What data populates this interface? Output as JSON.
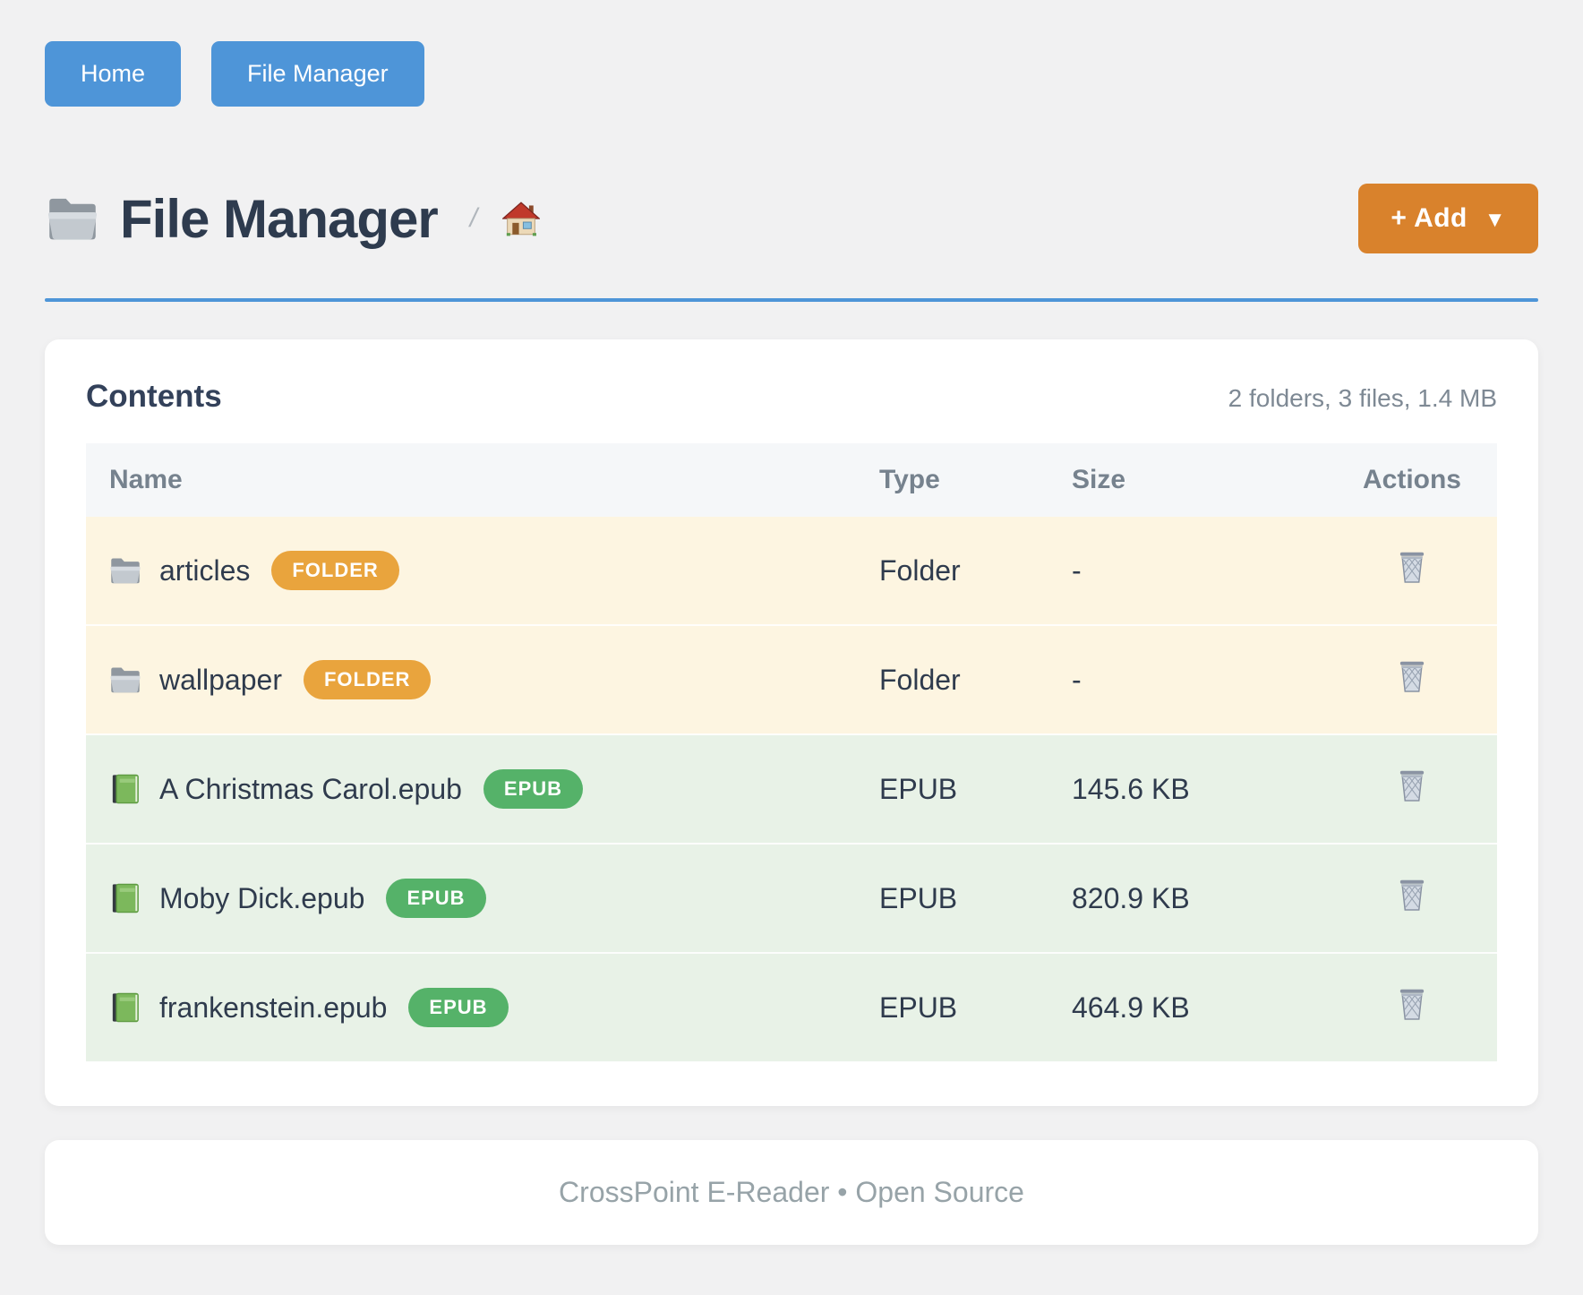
{
  "nav": {
    "buttons": [
      {
        "label": "Home"
      },
      {
        "label": "File Manager"
      }
    ]
  },
  "header": {
    "icon": "folder-icon",
    "title": "File Manager",
    "breadcrumb_separator": "/",
    "breadcrumb_home_icon": "home-icon",
    "add_button_label": "+ Add",
    "add_button_caret": "▼"
  },
  "contents": {
    "title": "Contents",
    "summary": "2 folders, 3 files, 1.4 MB",
    "table": {
      "columns": [
        "Name",
        "Type",
        "Size",
        "Actions"
      ],
      "action_icon": "trash-icon",
      "rows": [
        {
          "icon": "folder-icon",
          "name": "articles",
          "badge": "FOLDER",
          "type": "Folder",
          "size": "-",
          "kind": "folder"
        },
        {
          "icon": "folder-icon",
          "name": "wallpaper",
          "badge": "FOLDER",
          "type": "Folder",
          "size": "-",
          "kind": "folder"
        },
        {
          "icon": "book-icon",
          "name": "A Christmas Carol.epub",
          "badge": "EPUB",
          "type": "EPUB",
          "size": "145.6 KB",
          "kind": "epub"
        },
        {
          "icon": "book-icon",
          "name": "Moby Dick.epub",
          "badge": "EPUB",
          "type": "EPUB",
          "size": "820.9 KB",
          "kind": "epub"
        },
        {
          "icon": "book-icon",
          "name": "frankenstein.epub",
          "badge": "EPUB",
          "type": "EPUB",
          "size": "464.9 KB",
          "kind": "epub"
        }
      ]
    }
  },
  "footer": {
    "text": "CrossPoint E-Reader • Open Source"
  },
  "colors": {
    "primary_blue": "#4e95d8",
    "add_orange": "#d9822c",
    "folder_badge": "#e9a43d",
    "epub_badge": "#55b269",
    "folder_row_bg": "#fdf5e1",
    "epub_row_bg": "#e8f2e7",
    "page_bg": "#f1f1f2"
  }
}
